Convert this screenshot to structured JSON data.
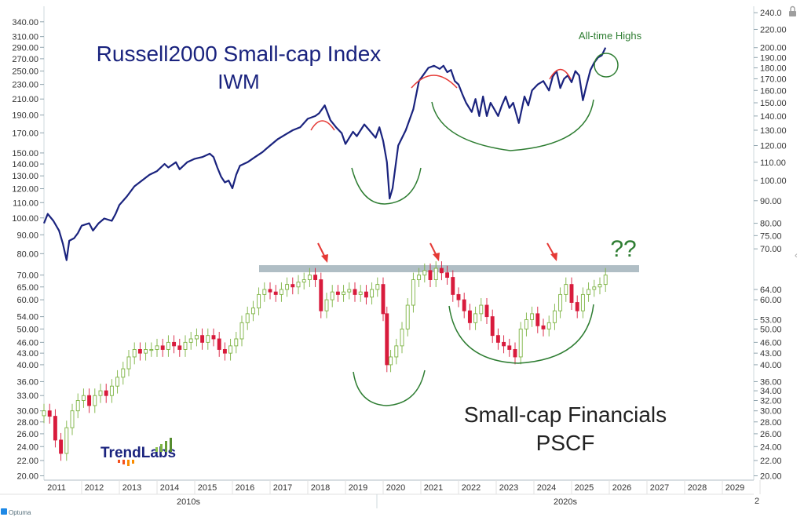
{
  "chart_data": [
    {
      "type": "line",
      "title": "Russell2000 Small-cap Index",
      "subtitle": "IWM",
      "y_axis": "right",
      "scale": "log",
      "ylim": [
        68,
        240
      ],
      "yticks": [
        70,
        75,
        80,
        90,
        100,
        110,
        120,
        130,
        140,
        150,
        160,
        170,
        180,
        190,
        200,
        220,
        240
      ],
      "ytick_labels": [
        "70.00",
        "75.00",
        "80.00",
        "90.00",
        "100.00",
        "110.00",
        "120.00",
        "130.00",
        "140.00",
        "150.00",
        "160.00",
        "170.00",
        "180.00",
        "190.00",
        "200.00",
        "220.00",
        "240.0"
      ],
      "color": "#1a237e",
      "x": [
        2011.0,
        2011.1,
        2011.25,
        2011.4,
        2011.5,
        2011.6,
        2011.67,
        2011.8,
        2011.9,
        2012.0,
        2012.2,
        2012.3,
        2012.4,
        2012.45,
        2012.6,
        2012.8,
        2012.9,
        2013.0,
        2013.2,
        2013.4,
        2013.6,
        2013.8,
        2014.0,
        2014.2,
        2014.3,
        2014.5,
        2014.6,
        2014.8,
        2015.0,
        2015.2,
        2015.4,
        2015.5,
        2015.6,
        2015.7,
        2015.8,
        2015.9,
        2016.0,
        2016.1,
        2016.2,
        2016.4,
        2016.6,
        2016.8,
        2016.9,
        2017.0,
        2017.2,
        2017.4,
        2017.6,
        2017.8,
        2018.0,
        2018.2,
        2018.3,
        2018.45,
        2018.6,
        2018.75,
        2018.9,
        2019.0,
        2019.2,
        2019.3,
        2019.5,
        2019.6,
        2019.8,
        2019.9,
        2020.0,
        2020.1,
        2020.17,
        2020.25,
        2020.4,
        2020.6,
        2020.8,
        2020.95,
        2021.2,
        2021.35,
        2021.5,
        2021.6,
        2021.7,
        2021.8,
        2021.9,
        2022.0,
        2022.1,
        2022.2,
        2022.35,
        2022.45,
        2022.55,
        2022.65,
        2022.75,
        2022.85,
        2022.95,
        2023.05,
        2023.15,
        2023.25,
        2023.35,
        2023.45,
        2023.6,
        2023.75,
        2023.85,
        2023.95,
        2024.1,
        2024.25,
        2024.4,
        2024.5,
        2024.6,
        2024.7,
        2024.8,
        2024.9,
        2025.0,
        2025.1,
        2025.2,
        2025.3,
        2025.4,
        2025.5,
        2025.6,
        2025.7,
        2025.8,
        2025.9
      ],
      "y": [
        80,
        84,
        81,
        77,
        72,
        66,
        73,
        74,
        76,
        79,
        80,
        77,
        79,
        80,
        82,
        81,
        84,
        88,
        92,
        97,
        100,
        103,
        105,
        109,
        107,
        110,
        106,
        110,
        112,
        113,
        115,
        113,
        107,
        102,
        99,
        100,
        96,
        103,
        108,
        110,
        113,
        116,
        118,
        120,
        124,
        127,
        130,
        132,
        138,
        140,
        142,
        148,
        137,
        132,
        128,
        121,
        129,
        126,
        134,
        131,
        125,
        132,
        123,
        110,
        91,
        96,
        120,
        130,
        145,
        168,
        180,
        182,
        179,
        182,
        176,
        178,
        168,
        165,
        157,
        150,
        143,
        153,
        140,
        155,
        140,
        150,
        145,
        140,
        148,
        155,
        146,
        150,
        135,
        155,
        148,
        160,
        165,
        168,
        160,
        172,
        177,
        162,
        170,
        173,
        167,
        177,
        173,
        152,
        165,
        178,
        185,
        190,
        192,
        200
      ]
    },
    {
      "type": "candlestick",
      "title": "Small-cap Financials",
      "subtitle": "PSCF",
      "y_axis": "left",
      "scale": "log",
      "ylim": [
        20,
        340
      ],
      "yticks": [
        20,
        22,
        24,
        26,
        28,
        30,
        33,
        36,
        40,
        43,
        46,
        50,
        54,
        60,
        65,
        70,
        80,
        90,
        100,
        110,
        120,
        130,
        140,
        150,
        170,
        190,
        210,
        230,
        250,
        270,
        290,
        310,
        340
      ],
      "ytick_labels": [
        "20.00",
        "22.00",
        "24.00",
        "26.00",
        "28.00",
        "30.00",
        "33.00",
        "36.00",
        "40.00",
        "43.00",
        "46.00",
        "50.00",
        "54.00",
        "60.00",
        "65.00",
        "70.00",
        "80.00",
        "90.00",
        "100.00",
        "110.00",
        "120.00",
        "130.00",
        "140.00",
        "150.00",
        "170.00",
        "190.00",
        "210.00",
        "230.00",
        "250.00",
        "270.00",
        "290.00",
        "310.00",
        "340.00"
      ],
      "up_color": "#9ccc65",
      "down_color": "#d81b3c",
      "close_x": [
        2011.0,
        2011.15,
        2011.3,
        2011.45,
        2011.6,
        2011.75,
        2011.9,
        2012.05,
        2012.2,
        2012.35,
        2012.5,
        2012.65,
        2012.8,
        2012.95,
        2013.1,
        2013.25,
        2013.4,
        2013.55,
        2013.7,
        2013.85,
        2014.0,
        2014.15,
        2014.3,
        2014.45,
        2014.6,
        2014.75,
        2014.9,
        2015.05,
        2015.2,
        2015.35,
        2015.5,
        2015.65,
        2015.8,
        2015.95,
        2016.1,
        2016.25,
        2016.4,
        2016.55,
        2016.7,
        2016.85,
        2017.0,
        2017.15,
        2017.3,
        2017.45,
        2017.6,
        2017.75,
        2017.9,
        2018.05,
        2018.2,
        2018.35,
        2018.5,
        2018.65,
        2018.8,
        2018.95,
        2019.1,
        2019.25,
        2019.4,
        2019.55,
        2019.7,
        2019.85,
        2020.0,
        2020.1,
        2020.2,
        2020.35,
        2020.5,
        2020.65,
        2020.8,
        2020.95,
        2021.1,
        2021.25,
        2021.4,
        2021.55,
        2021.7,
        2021.85,
        2022.0,
        2022.15,
        2022.3,
        2022.45,
        2022.6,
        2022.75,
        2022.9,
        2023.05,
        2023.2,
        2023.35,
        2023.5,
        2023.65,
        2023.8,
        2023.95,
        2024.1,
        2024.25,
        2024.4,
        2024.55,
        2024.7,
        2024.85,
        2025.0,
        2025.15,
        2025.3,
        2025.45,
        2025.6,
        2025.75,
        2025.9
      ],
      "close": [
        30,
        29,
        25,
        23,
        27,
        30,
        32,
        33,
        31,
        33,
        34,
        33,
        35,
        37,
        39,
        42,
        44,
        43,
        44,
        44,
        45,
        44,
        46,
        45,
        44,
        46,
        47,
        48,
        46,
        48,
        47,
        44,
        43,
        45,
        47,
        52,
        55,
        57,
        62,
        64,
        63,
        62,
        64,
        66,
        65,
        67,
        68,
        70,
        68,
        56,
        60,
        63,
        62,
        63,
        64,
        62,
        63,
        61,
        64,
        66,
        55,
        40,
        42,
        45,
        50,
        58,
        68,
        70,
        72,
        68,
        73,
        71,
        69,
        62,
        60,
        56,
        52,
        55,
        58,
        54,
        48,
        46,
        45,
        44,
        42,
        50,
        53,
        55,
        51,
        50,
        52,
        56,
        62,
        66,
        59,
        56,
        62,
        64,
        65,
        66,
        70
      ],
      "annotations": [
        "??"
      ]
    }
  ],
  "texts": {
    "title_line1": "Russell2000 Small-cap Index",
    "title_line2": "IWM",
    "pscf_line1": "Small-cap Financials",
    "pscf_line2": "PSCF",
    "ath": "All-time Highs",
    "question": "??",
    "logo_trend": "Trend",
    "logo_labs": "Labs",
    "optuma": "Optuma",
    "page_indicator": "2",
    "collapse": "‹"
  },
  "x_axis": {
    "years": [
      "2011",
      "2012",
      "2013",
      "2014",
      "2015",
      "2016",
      "2017",
      "2018",
      "2019",
      "2020",
      "2021",
      "2022",
      "2023",
      "2024",
      "2025",
      "2026",
      "2027",
      "2028",
      "2029"
    ],
    "decades": [
      "2010s",
      "2020s"
    ]
  },
  "colors": {
    "iwm_line": "#1a237e",
    "title": "#1a237e",
    "resistance": "#b0bec5",
    "arc_green": "#2e7d32",
    "arc_red": "#e53935",
    "up": "#9ccc65",
    "down": "#d81b3c",
    "logo_text": "#1a237e"
  }
}
